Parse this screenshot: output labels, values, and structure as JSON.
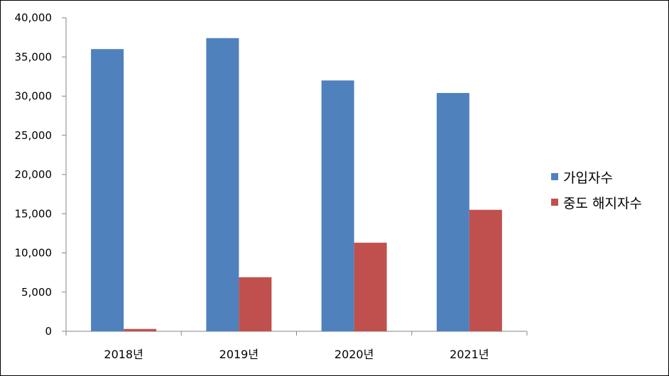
{
  "chart_data": {
    "type": "bar",
    "categories": [
      "2018년",
      "2019년",
      "2020년",
      "2021년"
    ],
    "series": [
      {
        "name": "가입자수",
        "values": [
          36000,
          37400,
          32000,
          30400
        ],
        "color": "#4F81BD"
      },
      {
        "name": "중도 해지자수",
        "values": [
          300,
          6900,
          11300,
          15500
        ],
        "color": "#C0504D"
      }
    ],
    "ylim": [
      0,
      40000
    ],
    "yticks": [
      "0",
      "5,000",
      "10,000",
      "15,000",
      "20,000",
      "25,000",
      "30,000",
      "35,000",
      "40,000"
    ],
    "ytick_values": [
      0,
      5000,
      10000,
      15000,
      20000,
      25000,
      30000,
      35000,
      40000
    ],
    "grid": false,
    "legend_position": "right"
  }
}
